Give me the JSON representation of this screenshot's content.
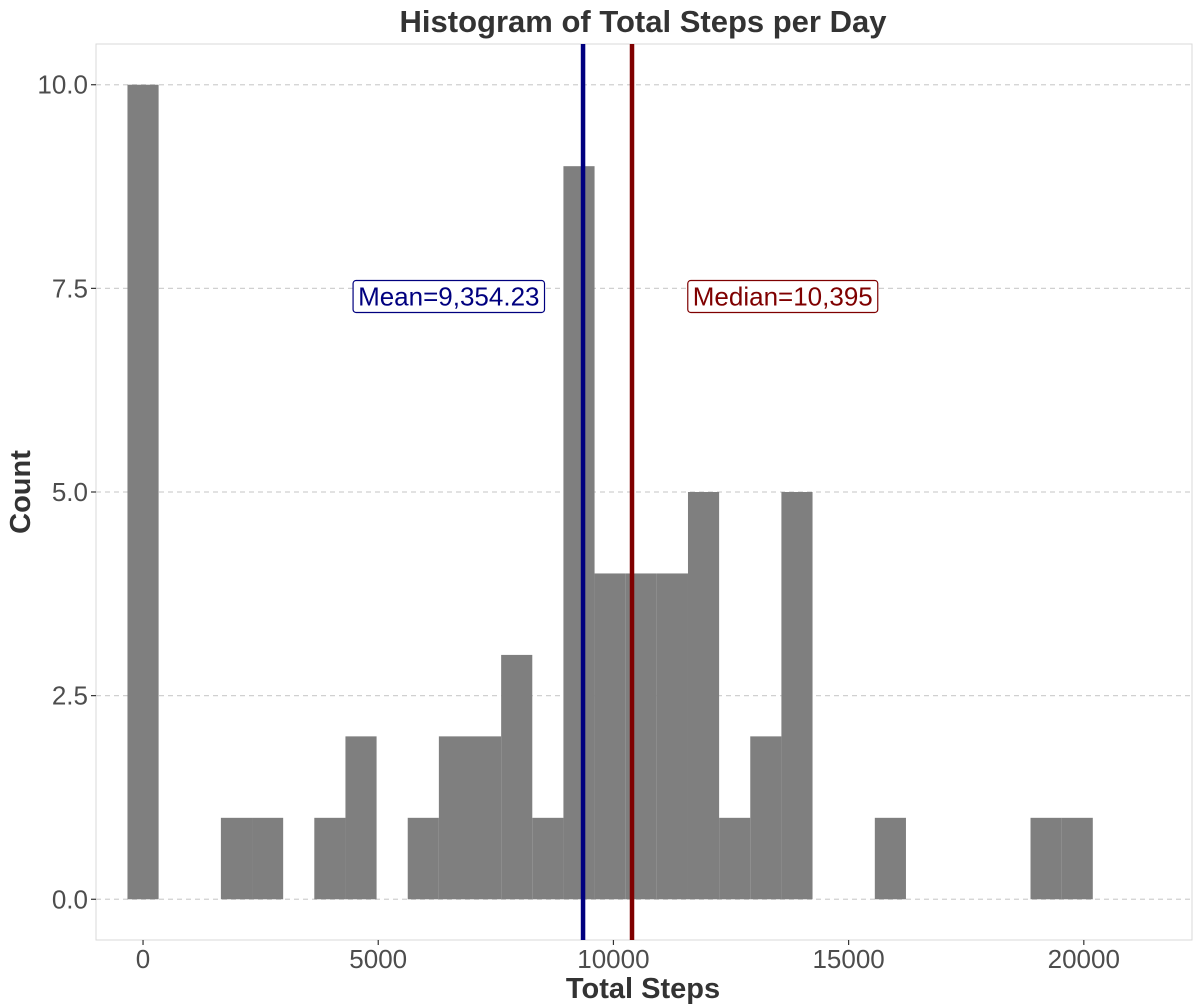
{
  "chart_data": {
    "type": "bar",
    "title": "Histogram of Total Steps per Day",
    "xlabel": "Total Steps",
    "ylabel": "Count",
    "bin_width": 662,
    "bin_centers": [
      0,
      662,
      1324,
      1986,
      2648,
      3310,
      3972,
      4634,
      5296,
      5958,
      6620,
      7282,
      7944,
      8606,
      9268,
      9930,
      10592,
      11254,
      11916,
      12578,
      13240,
      13902,
      14564,
      15226,
      15888,
      16550,
      17212,
      17874,
      18536,
      19198,
      19860,
      20522,
      21184
    ],
    "counts": [
      10,
      0,
      0,
      1,
      1,
      0,
      1,
      2,
      0,
      1,
      2,
      2,
      3,
      1,
      9,
      4,
      4,
      4,
      5,
      1,
      2,
      5,
      0,
      0,
      1,
      0,
      0,
      0,
      0,
      1,
      1,
      0,
      0
    ],
    "xlim": [
      -1000,
      22300
    ],
    "ylim": [
      -0.5,
      10.5
    ],
    "x_ticks": [
      0,
      5000,
      10000,
      15000,
      20000
    ],
    "x_tick_labels": [
      "0",
      "5000",
      "10000",
      "15000",
      "20000"
    ],
    "y_ticks": [
      0,
      2.5,
      5,
      7.5,
      10
    ],
    "y_tick_labels": [
      "0.0",
      "2.5",
      "5.0",
      "7.5",
      "10.0"
    ],
    "grid": true,
    "bar_color": "#7f7f7f",
    "reference_lines": [
      {
        "label": "Mean=9,354.23",
        "x": 9354.23,
        "color": "#00007f",
        "label_x": 6500,
        "label_y": 7.4
      },
      {
        "label": "Median=10,395",
        "x": 10395,
        "color": "#7f0000",
        "label_x": 13600,
        "label_y": 7.4
      }
    ]
  }
}
